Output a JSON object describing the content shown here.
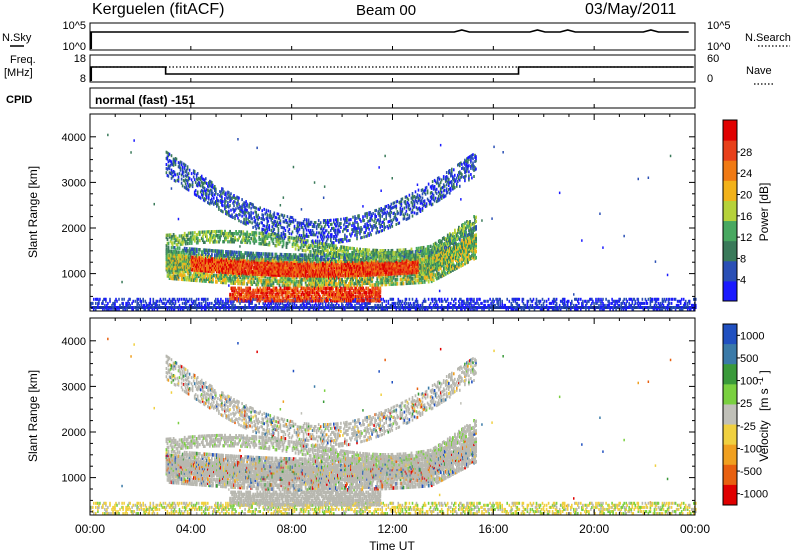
{
  "header": {
    "station": "Kerguelen (fitACF)",
    "beam": "Beam 00",
    "date": "03/May/2011"
  },
  "noise_panel": {
    "left_label": "N.Sky",
    "right_label": "N.Search",
    "left_ticks": [
      "10^5",
      "10^0"
    ],
    "right_ticks": [
      "10^5",
      "10^0"
    ]
  },
  "freq_panel": {
    "left_label_1": "Freq.",
    "left_label_2": "[MHz]",
    "right_label": "Nave",
    "left_ticks": [
      "18",
      "8"
    ],
    "right_ticks": [
      "60",
      "0"
    ]
  },
  "cpid": {
    "label": "CPID",
    "value": "normal (fast) -151"
  },
  "x_axis": {
    "title": "Time UT",
    "ticks": [
      "00:00",
      "04:00",
      "08:00",
      "12:00",
      "16:00",
      "20:00",
      "00:00"
    ]
  },
  "colors": {
    "power_scale": [
      "#1a1aff",
      "#2a4fb5",
      "#3a7a5a",
      "#48a860",
      "#b6d23a",
      "#f2b21a",
      "#f07a14",
      "#e8401a",
      "#e00000"
    ],
    "velocity_scale": [
      "#2050c0",
      "#3a7aa8",
      "#3a9a3a",
      "#7ad040",
      "#c0c0b8",
      "#f0d040",
      "#f0a020",
      "#e86010",
      "#e00000"
    ],
    "ground_scatter": "#b8b8b0"
  },
  "chart_data": [
    {
      "type": "heatmap",
      "title": "Power",
      "xlabel": "Time UT",
      "ylabel": "Slant Range [km]",
      "xlim": [
        0,
        24
      ],
      "ylim": [
        180,
        4500
      ],
      "yticks": [
        1000,
        2000,
        3000,
        4000
      ],
      "colorbar": {
        "label": "Power [dB]",
        "ticks": [
          "4",
          "8",
          "12",
          "16",
          "20",
          "24",
          "28"
        ],
        "range": [
          0,
          30
        ]
      },
      "features": [
        {
          "name": "main echo band",
          "t_start": 3.0,
          "t_end": 15.2,
          "range_start": 1100,
          "range_end": 1500,
          "power": 28
        },
        {
          "name": "lower echo band",
          "t_start": 5.5,
          "t_end": 11.5,
          "range_start": 400,
          "range_end": 700,
          "power": 28
        },
        {
          "name": "upper arc",
          "t_start": 3.0,
          "t_end": 15.0,
          "range_start": 1800,
          "range_end": 3500,
          "power": 8
        }
      ]
    },
    {
      "type": "heatmap",
      "title": "Velocity",
      "xlabel": "Time UT",
      "ylabel": "Slant Range [km]",
      "xlim": [
        0,
        24
      ],
      "ylim": [
        180,
        4500
      ],
      "yticks": [
        1000,
        2000,
        3000,
        4000
      ],
      "colorbar": {
        "label": "Velocity",
        "unit_prefix": "[m s",
        "unit_exp": "-1",
        "unit_suffix": "]",
        "ticks": [
          "1000",
          "500",
          "100",
          "25",
          "-25",
          "-100",
          "-500",
          "-1000"
        ],
        "range": [
          -1000,
          1000
        ]
      },
      "features": [
        {
          "name": "ground scatter band",
          "t_start": 3.0,
          "t_end": 15.2,
          "range_start": 1000,
          "range_end": 1700,
          "velocity": 0
        },
        {
          "name": "upper arc",
          "t_start": 3.0,
          "t_end": 15.0,
          "range_start": 1800,
          "range_end": 3500,
          "velocity": 0
        }
      ]
    }
  ]
}
